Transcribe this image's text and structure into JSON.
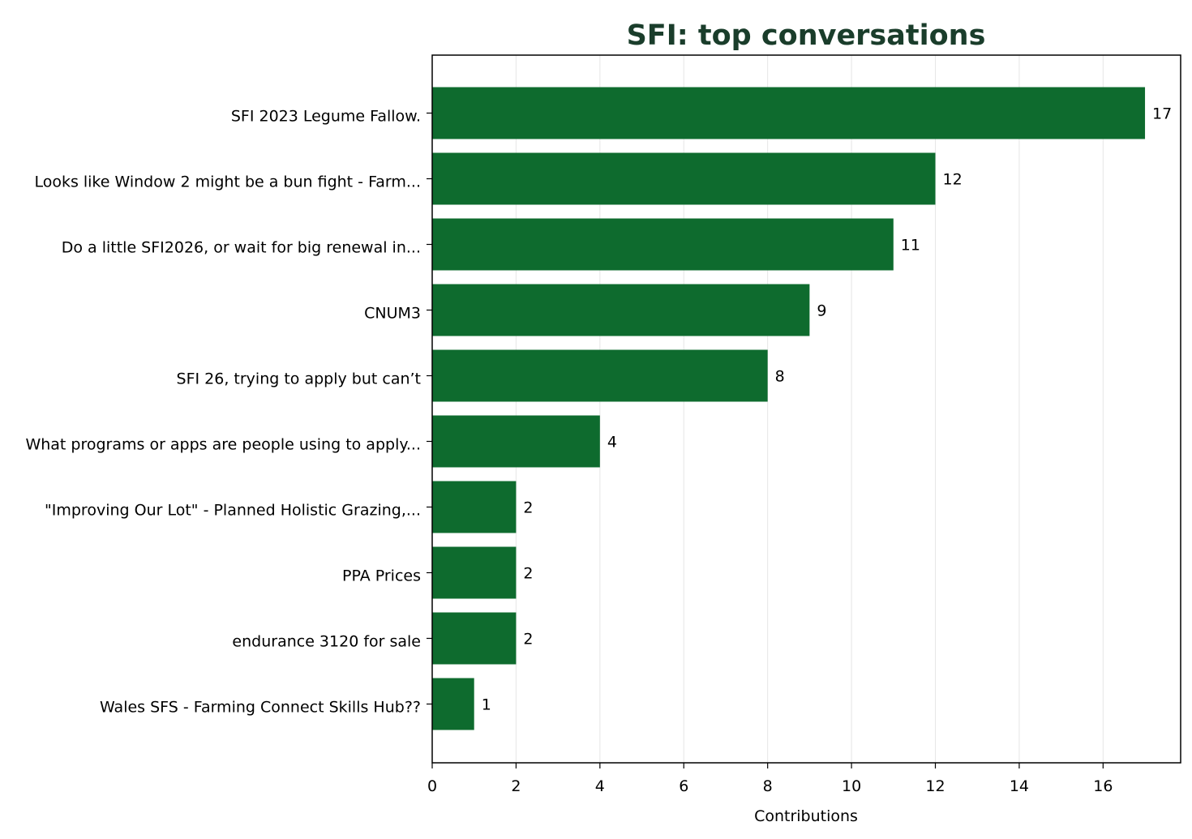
{
  "chart_data": {
    "type": "bar",
    "orientation": "horizontal",
    "title": "SFI: top conversations",
    "xlabel": "Contributions",
    "ylabel": "",
    "xlim": [
      0,
      17.85
    ],
    "xticks": [
      0,
      2,
      4,
      6,
      8,
      10,
      12,
      14,
      16
    ],
    "grid": "vertical",
    "bar_color": "#0e6b2e",
    "title_color": "#1a3d2b",
    "categories": [
      "SFI 2023 Legume Fallow.",
      "Looks like Window 2 might be a bun fight - Farm...",
      "Do a little SFI2026, or wait for big renewal in...",
      "CNUM3",
      "SFI 26, trying to apply but can’t",
      "What programs or apps are people using to apply...",
      "\"Improving Our Lot\" - Planned Holistic Grazing,...",
      "PPA Prices",
      "endurance 3120 for sale",
      "Wales SFS - Farming Connect Skills Hub??"
    ],
    "values": [
      17,
      12,
      11,
      9,
      8,
      4,
      2,
      2,
      2,
      1
    ]
  }
}
